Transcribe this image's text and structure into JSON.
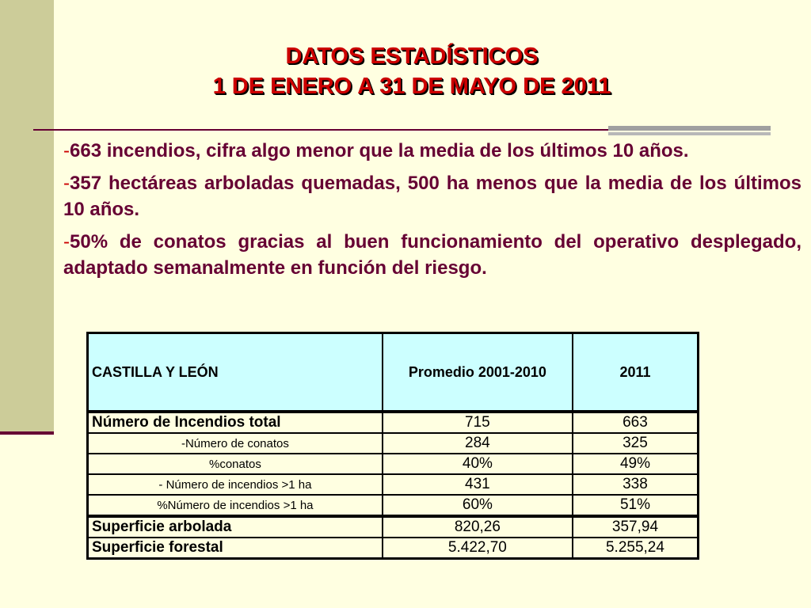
{
  "title": {
    "line1": "DATOS ESTADÍSTICOS",
    "line2": "1 DE ENERO A 31 DE MAYO DE 2011"
  },
  "bullets": [
    {
      "dash": "-",
      "text": "663 incendios, cifra algo menor que la media de los últimos 10 años."
    },
    {
      "dash": "-",
      "text": "357 hectáreas arboladas quemadas, 500 ha menos que la media de los últimos 10 años."
    },
    {
      "dash": "-",
      "text": "50% de conatos gracias al buen funcionamiento del operativo desplegado, adaptado semanalmente en función del riesgo."
    }
  ],
  "table": {
    "headers": [
      "CASTILLA Y LEÓN",
      "Promedio 2001-2010",
      "2011"
    ],
    "rows": [
      {
        "label": "Número de Incendios total",
        "avg": "715",
        "y2011": "663"
      },
      {
        "label": "-Número de conatos",
        "avg": "284",
        "y2011": "325"
      },
      {
        "label": "%conatos",
        "avg": "40%",
        "y2011": "49%"
      },
      {
        "label": "- Número de incendios >1 ha",
        "avg": "431",
        "y2011": "338"
      },
      {
        "label": "%Número de incendios >1 ha",
        "avg": "60%",
        "y2011": "51%"
      },
      {
        "label": "Superficie arbolada",
        "avg": "820,26",
        "y2011": "357,94"
      },
      {
        "label": "Superficie forestal",
        "avg": "5.422,70",
        "y2011": "5.255,24"
      }
    ]
  }
}
